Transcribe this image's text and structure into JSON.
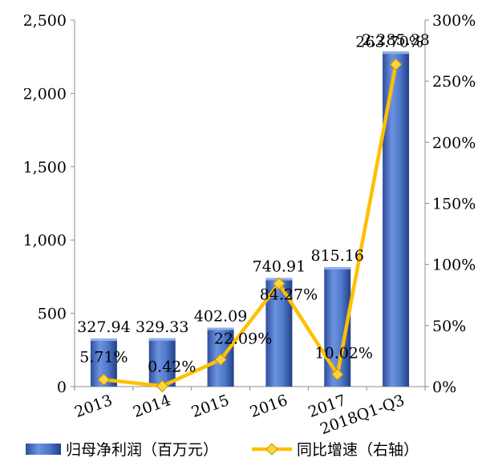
{
  "chart_data": {
    "type": "bar",
    "categories": [
      "2013",
      "2014",
      "2015",
      "2016",
      "2017",
      "2018Q1-Q3"
    ],
    "series": [
      {
        "name": "归母净利润（百万元）",
        "type": "bar",
        "axis": "left",
        "color": "#4472C4",
        "values": [
          327.94,
          329.33,
          402.09,
          740.91,
          815.16,
          2285.38
        ],
        "labels": [
          "327.94",
          "329.33",
          "402.09",
          "740.91",
          "815.16",
          "2,285.38"
        ]
      },
      {
        "name": "同比增速（右轴）",
        "type": "line",
        "axis": "right",
        "color": "#FFC000",
        "values": [
          5.71,
          0.42,
          22.09,
          84.27,
          10.02,
          263.7
        ],
        "labels": [
          "5.71%",
          "0.42%",
          "22.09%",
          "84.27%",
          "10.02%",
          "263.70%"
        ]
      }
    ],
    "y_left": {
      "lim": [
        0,
        2500
      ],
      "ticks": [
        0,
        500,
        1000,
        1500,
        2000,
        2500
      ],
      "tick_labels": [
        "0",
        "500",
        "1,000",
        "1,500",
        "2,000",
        "2,500"
      ]
    },
    "y_right": {
      "lim": [
        0,
        300
      ],
      "ticks": [
        0,
        50,
        100,
        150,
        200,
        250,
        300
      ],
      "tick_labels": [
        "0%",
        "50%",
        "100%",
        "150%",
        "200%",
        "250%",
        "300%"
      ]
    },
    "grid": false,
    "legend_position": "bottom"
  }
}
